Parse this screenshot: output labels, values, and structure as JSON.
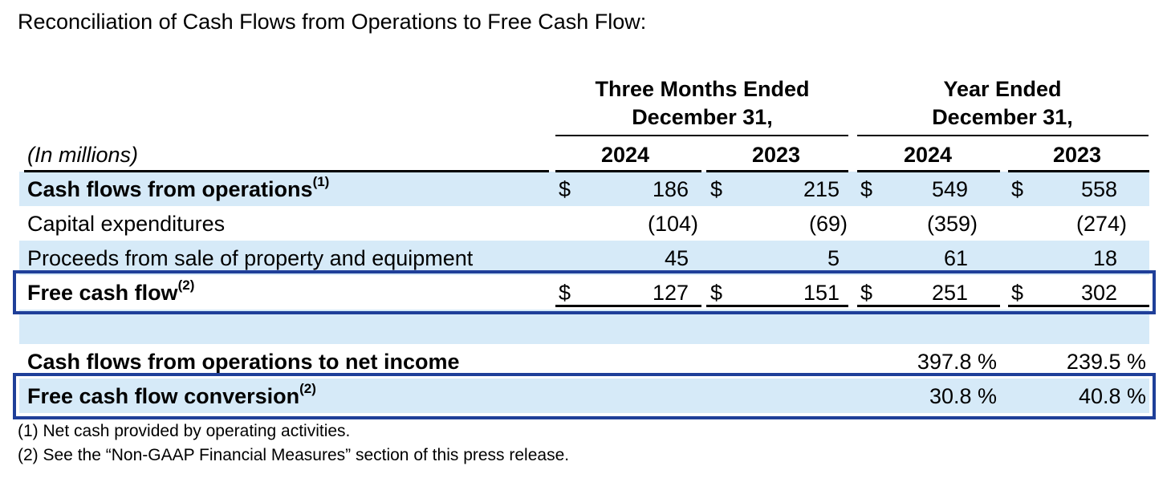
{
  "title": "Reconciliation of Cash Flows from Operations to Free Cash Flow:",
  "header": {
    "three_months": [
      "Three Months Ended",
      "December 31,"
    ],
    "year": [
      "Year Ended",
      "December 31,"
    ],
    "units": "(In millions)",
    "years": [
      "2024",
      "2023",
      "2024",
      "2023"
    ]
  },
  "rows": [
    {
      "label": "Cash flows from operations",
      "note": "(1)",
      "dollar": "$",
      "values": [
        "186",
        "215",
        "549",
        "558"
      ]
    },
    {
      "label": "Capital expenditures",
      "note": "",
      "dollar": "",
      "values": [
        "(104)",
        "(69)",
        "(359)",
        "(274)"
      ]
    },
    {
      "label": "Proceeds from sale of property and equipment",
      "note": "",
      "dollar": "",
      "values": [
        "45",
        "5",
        "61",
        "18"
      ]
    },
    {
      "label": "Free cash flow",
      "note": "(2)",
      "dollar": "$",
      "values": [
        "127",
        "151",
        "251",
        "302"
      ]
    }
  ],
  "ratios": [
    {
      "label": "Cash flows from operations to net income",
      "note": "",
      "values": [
        "397.8 %",
        "239.5 %"
      ]
    },
    {
      "label": "Free cash flow conversion",
      "note": "(2)",
      "values": [
        "30.8 %",
        "40.8 %"
      ]
    }
  ],
  "footnotes": [
    "(1) Net cash provided by operating activities.",
    "(2) See the “Non-GAAP Financial Measures” section of this press release."
  ],
  "colors": {
    "row_band": "#d6eaf8",
    "highlight_border": "#1f3f99"
  }
}
